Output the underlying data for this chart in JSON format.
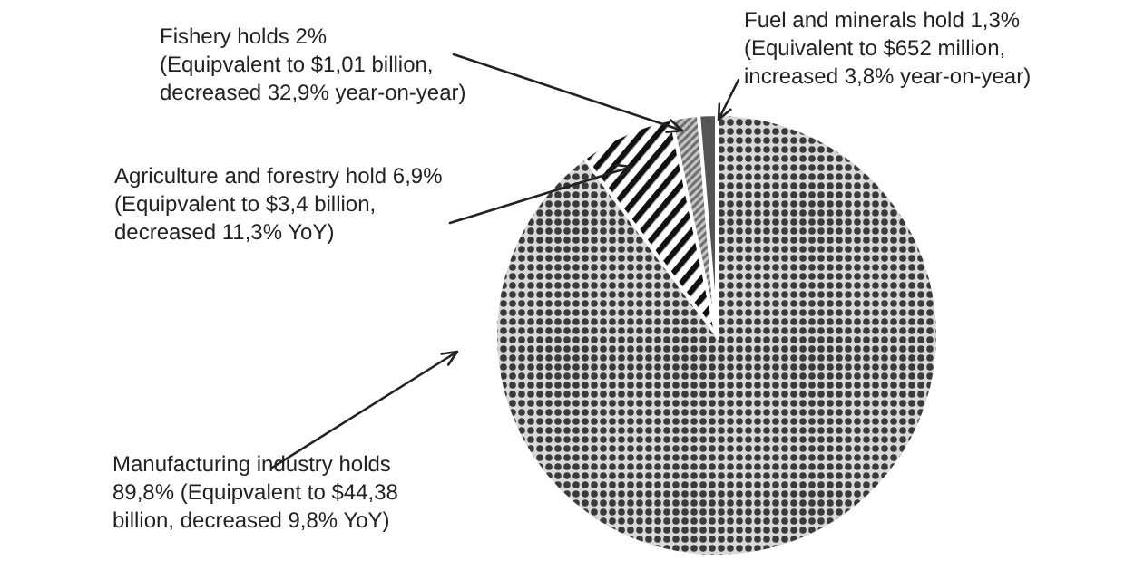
{
  "chart_data": {
    "type": "pie",
    "categories": [
      "Manufacturing industry holds\n89,8% (Equipvalent to $44,38\nbillion, decreased 9,8% YoY)",
      "Agriculture and forestry hold 6,9%\n(Equipvalent to $3,4 billion,\ndecreased 11,3% YoY)",
      "Fishery holds 2%\n(Equipvalent to $1,01 billion,\ndecreased 32,9% year-on-year)",
      "Fuel and minerals hold 1,3%\n(Equivalent to $652 million,\nincreased 3,8% year-on-year)"
    ],
    "values": [
      89.8,
      6.9,
      2,
      1.3
    ],
    "colors": [
      "#3a3a3a",
      "#111111",
      "#707070",
      "#555555"
    ]
  }
}
